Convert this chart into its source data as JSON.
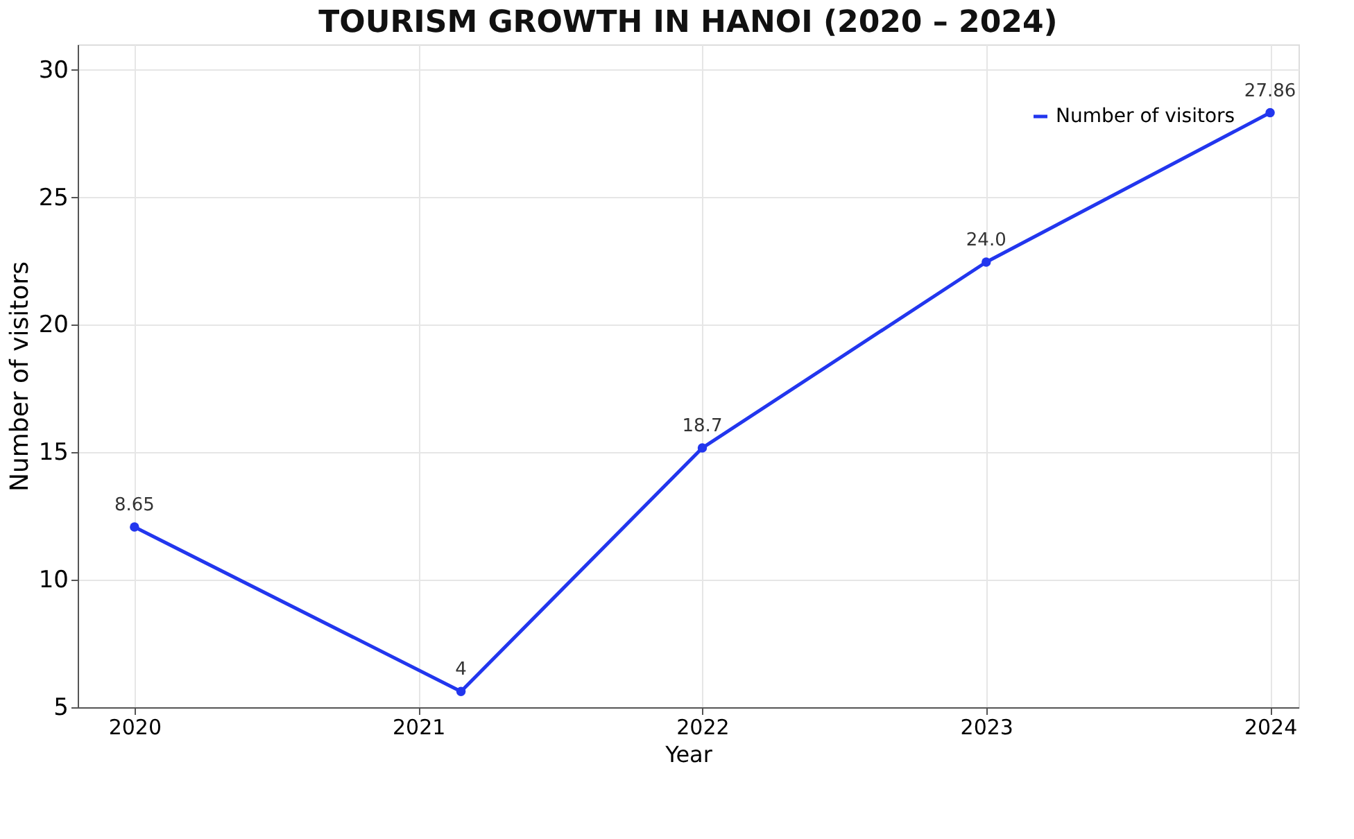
{
  "chart_data": {
    "type": "line",
    "title": "TOURISM GROWTH IN HANOI (2020 – 2024)",
    "xlabel": "Year",
    "ylabel": "Number of visitors",
    "x": [
      2020,
      2021.15,
      2022,
      2023,
      2024
    ],
    "series": [
      {
        "name": "Number of visitors",
        "color": "#2236ee",
        "values": [
          12.07,
          5.62,
          15.17,
          22.46,
          28.32
        ]
      }
    ],
    "annotations": [
      {
        "text": "8.65",
        "x": 2020,
        "y": 12.07
      },
      {
        "text": "4",
        "x": 2021.15,
        "y": 5.62
      },
      {
        "text": "18.7",
        "x": 2022,
        "y": 15.17
      },
      {
        "text": "24.0",
        "x": 2023,
        "y": 22.46
      },
      {
        "text": "27.86",
        "x": 2024,
        "y": 28.32
      }
    ],
    "xlim": [
      2019.8,
      2024.1
    ],
    "xticks": [
      2020,
      2021,
      2022,
      2023,
      2024
    ],
    "ylim": [
      5,
      31
    ],
    "yticks": [
      5,
      10,
      15,
      20,
      25,
      30
    ],
    "grid": true,
    "legend": "top right",
    "marker": "circle",
    "line_style": "solid"
  }
}
